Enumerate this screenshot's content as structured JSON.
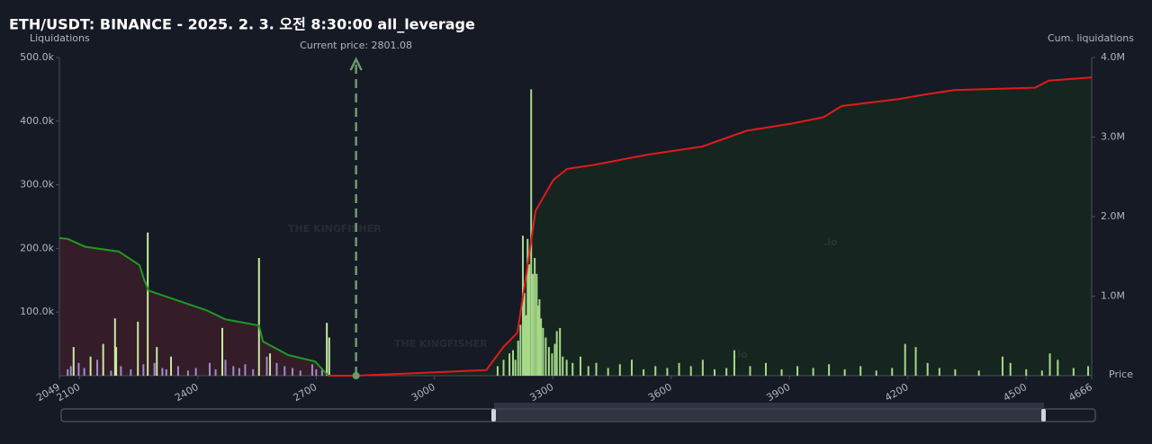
{
  "chart_data": {
    "type": "bar",
    "title": "ETH/USDT: BINANCE - 2025. 2. 3. 오전 8:30:00 all_leverage",
    "y_label": "Liquidations",
    "y2_label": "Cum. liquidations",
    "x_label": "Price",
    "annotation": "Current price: 2801.08",
    "current_price": 2801.08,
    "watermark": "THE KINGFISHER",
    "watermark_suffix": ".io",
    "xlim": [
      2049,
      4666
    ],
    "xticks": [
      2049,
      2100,
      2400,
      2700,
      3000,
      3300,
      3600,
      3900,
      4200,
      4500,
      4666
    ],
    "ylim": [
      0,
      500000
    ],
    "yticks": [
      {
        "value": 100000,
        "label": "100.0k"
      },
      {
        "value": 200000,
        "label": "200.0k"
      },
      {
        "value": 300000,
        "label": "300.0k"
      },
      {
        "value": 400000,
        "label": "400.0k"
      },
      {
        "value": 500000,
        "label": "500.0k"
      }
    ],
    "y2lim": [
      0,
      4000000
    ],
    "y2ticks": [
      {
        "value": 1000000,
        "label": "1.0M"
      },
      {
        "value": 2000000,
        "label": "2.0M"
      },
      {
        "value": 3000000,
        "label": "3.0M"
      },
      {
        "value": 4000000,
        "label": "4.0M"
      }
    ],
    "series": [
      {
        "type": "bar",
        "color": "#9d8ec9",
        "x": [
          2070,
          2078,
          2098,
          2112,
          2145,
          2180,
          2205,
          2230,
          2262,
          2290,
          2310,
          2320,
          2350,
          2375,
          2395,
          2430,
          2445,
          2470,
          2490,
          2505,
          2520,
          2540,
          2575,
          2600,
          2620,
          2640,
          2660,
          2690,
          2700,
          2715
        ],
        "values": [
          10000,
          15000,
          20000,
          12000,
          25000,
          8000,
          15000,
          10000,
          18000,
          20000,
          12000,
          10000,
          15000,
          8000,
          12000,
          20000,
          10000,
          25000,
          15000,
          12000,
          18000,
          10000,
          30000,
          20000,
          15000,
          12000,
          8000,
          18000,
          10000,
          12000
        ]
      },
      {
        "type": "bar",
        "color": "#c8eaa0",
        "x": [
          2085,
          2128,
          2160,
          2190,
          2193,
          2248,
          2273,
          2296,
          2332,
          2462,
          2555,
          2583,
          2727,
          2733
        ],
        "values": [
          45000,
          30000,
          50000,
          90000,
          45000,
          85000,
          225000,
          45000,
          30000,
          75000,
          185000,
          35000,
          83000,
          60000
        ]
      },
      {
        "type": "bar",
        "color": "#a6d98a",
        "x": [
          3160,
          3175,
          3190,
          3199,
          3205,
          3212,
          3218,
          3224,
          3228,
          3232,
          3236,
          3240,
          3245,
          3249,
          3254,
          3259,
          3263,
          3266,
          3270,
          3275,
          3282,
          3290,
          3298,
          3305,
          3310,
          3318,
          3325,
          3335,
          3350,
          3370,
          3390,
          3410,
          3440,
          3470,
          3500,
          3530,
          3560,
          3590,
          3620,
          3650,
          3680,
          3710,
          3740,
          3760,
          3800,
          3840,
          3880,
          3920,
          3960,
          4000,
          4040,
          4080,
          4120,
          4160,
          4193,
          4220,
          4250,
          4280,
          4320,
          4380,
          4440,
          4460,
          4500,
          4540,
          4560,
          4580,
          4620,
          4657
        ],
        "values": [
          15000,
          25000,
          35000,
          40000,
          25000,
          55000,
          80000,
          220000,
          130000,
          95000,
          215000,
          175000,
          450000,
          160000,
          185000,
          160000,
          110000,
          120000,
          90000,
          75000,
          60000,
          45000,
          35000,
          50000,
          70000,
          75000,
          30000,
          25000,
          20000,
          30000,
          15000,
          20000,
          12000,
          18000,
          25000,
          10000,
          15000,
          12000,
          20000,
          15000,
          25000,
          10000,
          12000,
          40000,
          15000,
          20000,
          10000,
          15000,
          12000,
          18000,
          10000,
          15000,
          8000,
          12000,
          50000,
          45000,
          20000,
          12000,
          10000,
          8000,
          30000,
          20000,
          10000,
          8000,
          35000,
          25000,
          12000,
          15000
        ]
      },
      {
        "type": "line",
        "axis": "y2",
        "color": "#1f9a1f",
        "fill": "#3a1d2a",
        "x": [
          2049,
          2070,
          2115,
          2200,
          2252,
          2263,
          2275,
          2423,
          2469,
          2555,
          2565,
          2629,
          2697,
          2731
        ],
        "values": [
          1730000,
          1720000,
          1620000,
          1560000,
          1390000,
          1220000,
          1070000,
          820000,
          710000,
          630000,
          430000,
          260000,
          180000,
          0
        ]
      },
      {
        "type": "line",
        "axis": "y2",
        "color": "#e01b1b",
        "fill": "#16281f",
        "x": [
          2731,
          2801,
          3131,
          3176,
          3210,
          3233,
          3256,
          3301,
          3336,
          3404,
          3541,
          3678,
          3792,
          3906,
          3986,
          4032,
          4180,
          4249,
          4317,
          4522,
          4557,
          4666
        ],
        "values": [
          0,
          0,
          70000,
          370000,
          540000,
          1280000,
          2070000,
          2460000,
          2600000,
          2650000,
          2780000,
          2880000,
          3080000,
          3170000,
          3250000,
          3390000,
          3480000,
          3540000,
          3590000,
          3620000,
          3710000,
          3750000
        ]
      }
    ]
  }
}
